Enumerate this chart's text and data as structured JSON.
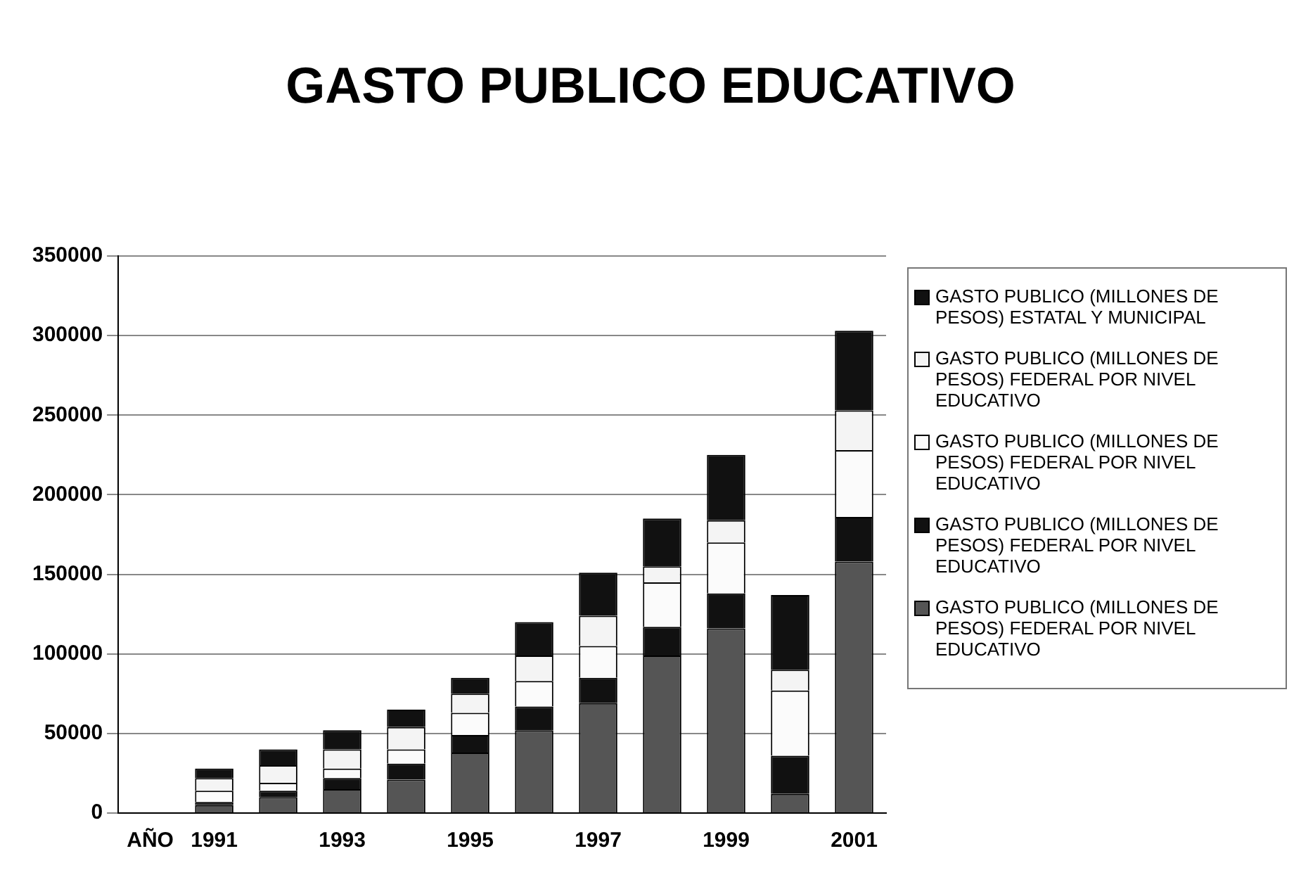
{
  "chart_data": {
    "type": "bar",
    "title": "GASTO PUBLICO EDUCATIVO",
    "stacked": true,
    "grid": "y",
    "legend": "right",
    "categories": [
      "AÑO",
      "1991",
      null,
      "1993",
      null,
      "1995",
      null,
      "1997",
      null,
      "1999",
      null,
      "2001"
    ],
    "ylim": [
      0,
      350000
    ],
    "yticks": [
      0,
      50000,
      100000,
      150000,
      200000,
      250000,
      300000,
      350000
    ],
    "series": [
      {
        "name": "GASTO PUBLICO (MILLONES DE PESOS) FEDERAL POR NIVEL EDUCATIVO",
        "color": "#555555",
        "values": [
          null,
          5000,
          10000,
          15000,
          21000,
          38000,
          52000,
          69000,
          99000,
          116000,
          12000,
          158000
        ]
      },
      {
        "name": "GASTO PUBLICO (MILLONES DE PESOS) FEDERAL POR NIVEL EDUCATIVO",
        "color": "#111111",
        "values": [
          0,
          2000,
          4000,
          7000,
          10000,
          11000,
          15000,
          16000,
          18000,
          22000,
          24000,
          28000
        ]
      },
      {
        "name": "GASTO PUBLICO (MILLONES DE PESOS) FEDERAL POR NIVEL EDUCATIVO",
        "color": "#fbfbfb",
        "values": [
          0,
          7000,
          5000,
          6000,
          9000,
          14000,
          16000,
          20000,
          28000,
          32000,
          41000,
          42000
        ]
      },
      {
        "name": "GASTO PUBLICO (MILLONES DE PESOS) FEDERAL POR NIVEL EDUCATIVO",
        "color": "#f4f4f4",
        "values": [
          0,
          8000,
          11000,
          12000,
          14000,
          12000,
          16000,
          19000,
          10000,
          14000,
          13000,
          25000
        ]
      },
      {
        "name": "GASTO PUBLICO (MILLONES DE PESOS) ESTATAL Y MUNICIPAL",
        "color": "#111111",
        "values": [
          0,
          6000,
          10000,
          12000,
          11000,
          10000,
          21000,
          27000,
          30000,
          41000,
          47000,
          50000
        ]
      }
    ]
  }
}
